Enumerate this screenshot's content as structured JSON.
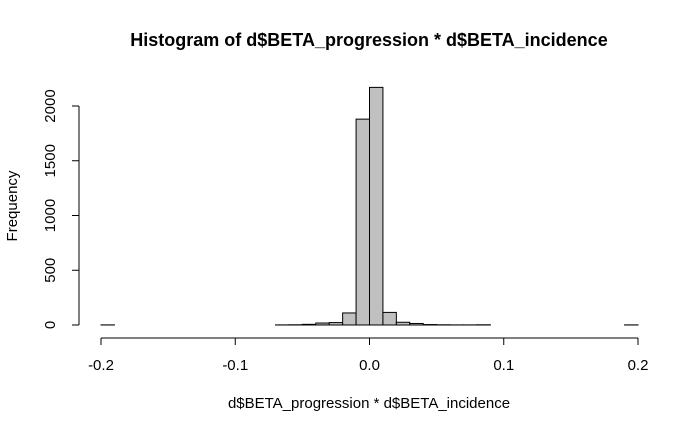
{
  "chart_data": {
    "type": "bar",
    "title": "Histogram of d$BETA_progression * d$BETA_incidence",
    "xlabel": "d$BETA_progression * d$BETA_incidence",
    "ylabel": "Frequency",
    "xlim": [
      -0.2,
      0.2
    ],
    "ylim": [
      0,
      2150
    ],
    "x_ticks": [
      -0.2,
      -0.1,
      0.0,
      0.1,
      0.2
    ],
    "x_tick_labels": [
      "-0.2",
      "-0.1",
      "0.0",
      "0.1",
      "0.2"
    ],
    "y_ticks": [
      0,
      500,
      1000,
      1500,
      2000
    ],
    "y_tick_labels": [
      "0",
      "500",
      "1000",
      "1500",
      "2000"
    ],
    "bin_width": 0.01,
    "bin_starts": [
      -0.2,
      -0.19,
      -0.18,
      -0.17,
      -0.16,
      -0.15,
      -0.14,
      -0.13,
      -0.12,
      -0.11,
      -0.1,
      -0.09,
      -0.08,
      -0.07,
      -0.06,
      -0.05,
      -0.04,
      -0.03,
      -0.02,
      -0.01,
      0.0,
      0.01,
      0.02,
      0.03,
      0.04,
      0.05,
      0.06,
      0.07,
      0.08,
      0.09,
      0.1,
      0.11,
      0.12,
      0.13,
      0.14,
      0.15,
      0.16,
      0.17,
      0.18,
      0.19
    ],
    "values": [
      1,
      0,
      0,
      0,
      0,
      0,
      0,
      0,
      0,
      0,
      0,
      0,
      0,
      1,
      2,
      6,
      18,
      22,
      110,
      1880,
      2170,
      115,
      25,
      14,
      4,
      2,
      1,
      1,
      2,
      0,
      0,
      0,
      0,
      0,
      0,
      0,
      0,
      0,
      0,
      1
    ],
    "grid": false
  }
}
